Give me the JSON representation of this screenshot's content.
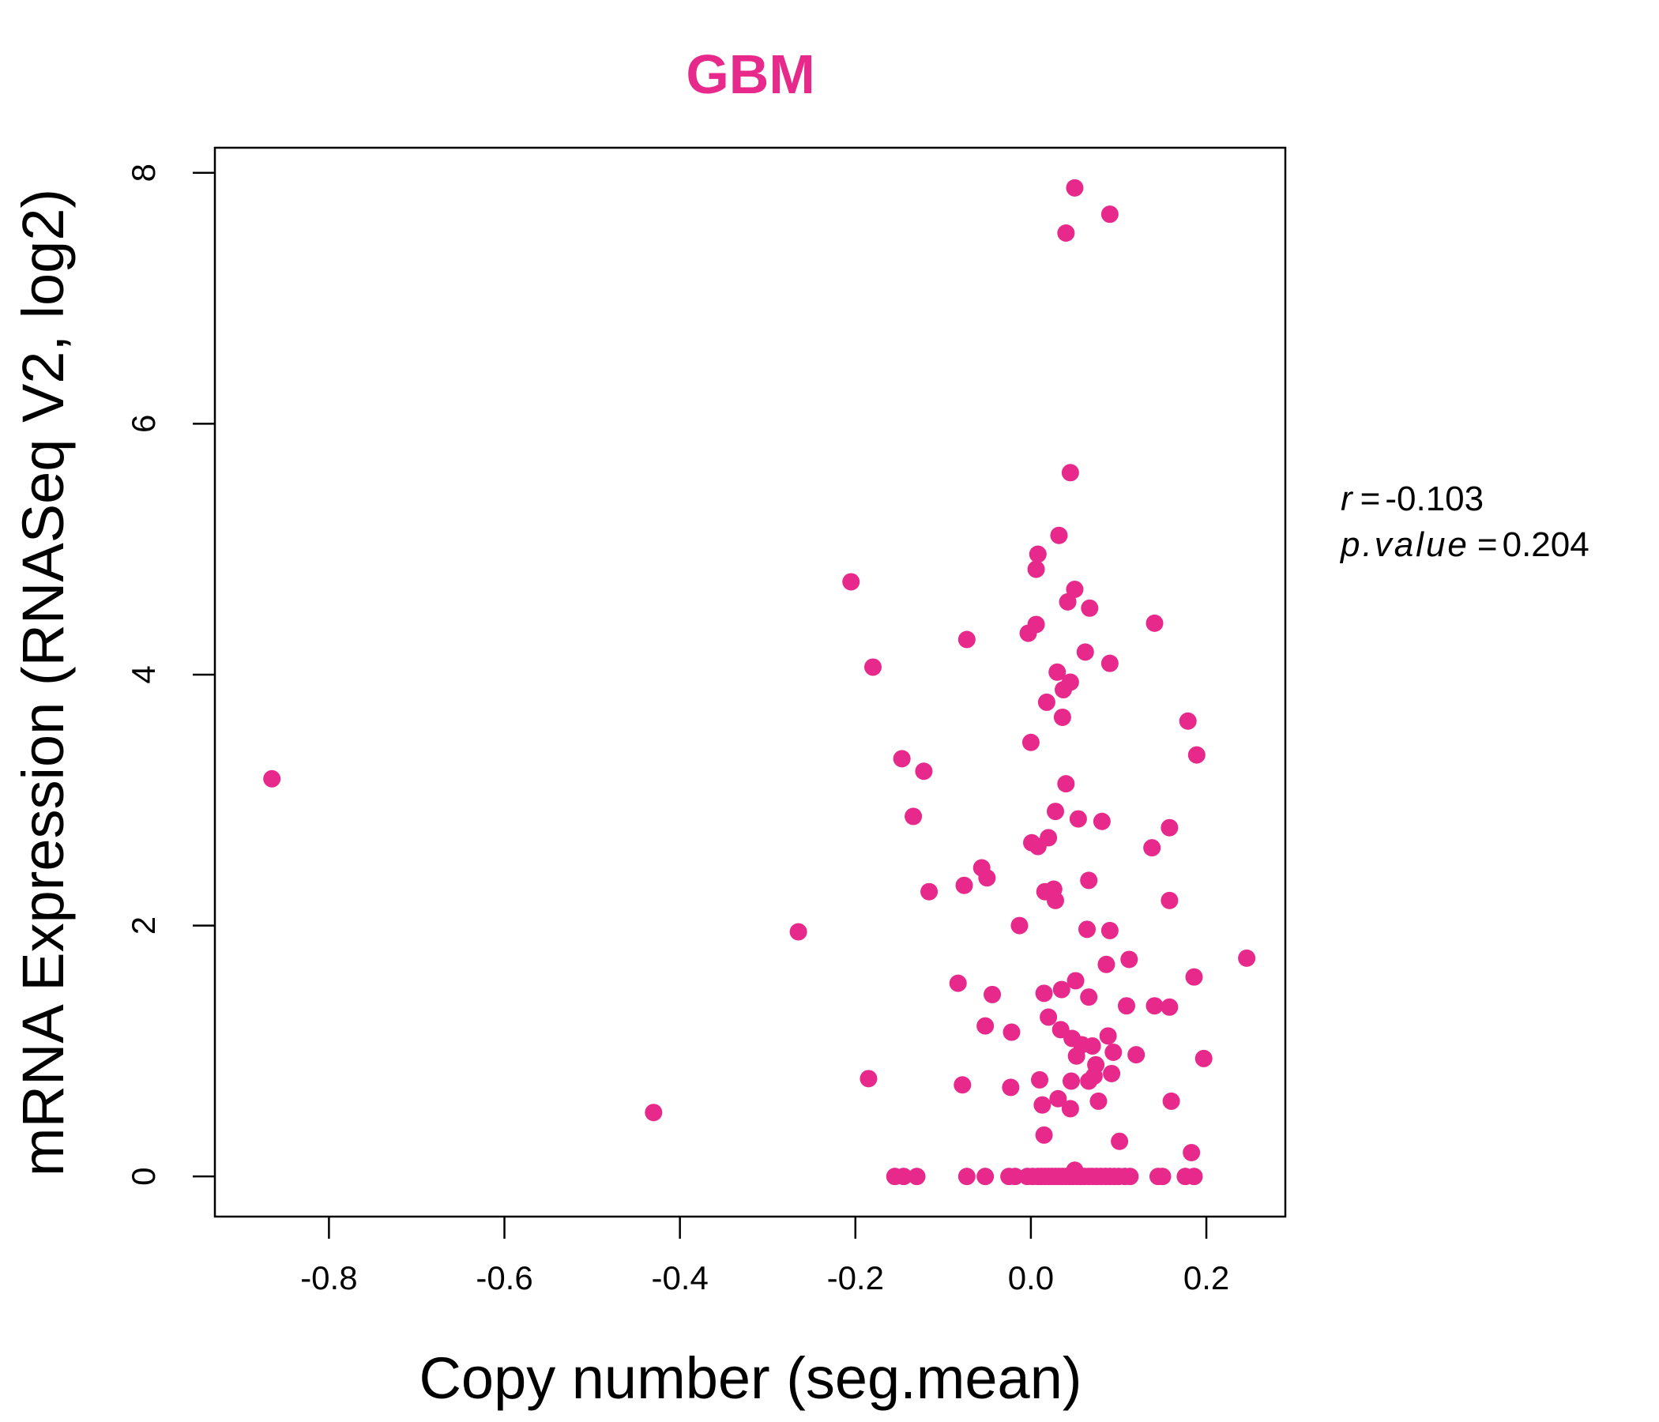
{
  "chart_data": {
    "type": "scatter",
    "title": "GBM",
    "xlabel": "Copy number (seg.mean)",
    "ylabel": "mRNA Expression (RNASeq V2, log2)",
    "xlim": [
      -0.93,
      0.29
    ],
    "ylim": [
      -0.32,
      8.2
    ],
    "xticks": [
      -0.8,
      -0.6,
      -0.4,
      -0.2,
      0.0,
      0.2
    ],
    "xtick_labels": [
      "-0.8",
      "-0.6",
      "-0.4",
      "-0.2",
      "0.0",
      "0.2"
    ],
    "yticks": [
      0,
      2,
      4,
      6,
      8
    ],
    "ytick_labels": [
      "0",
      "2",
      "4",
      "6",
      "8"
    ],
    "grid": false,
    "legend": "none",
    "color": "#E8298C",
    "stats": {
      "r_label": "r",
      "r_value": "-0.103",
      "p_label": "p.value",
      "p_value": "0.204"
    },
    "points": [
      {
        "x": -0.865,
        "y": 3.17
      },
      {
        "x": -0.43,
        "y": 0.51
      },
      {
        "x": -0.265,
        "y": 1.95
      },
      {
        "x": -0.205,
        "y": 4.74
      },
      {
        "x": -0.18,
        "y": 4.06
      },
      {
        "x": -0.185,
        "y": 0.78
      },
      {
        "x": -0.147,
        "y": 3.33
      },
      {
        "x": -0.122,
        "y": 3.23
      },
      {
        "x": -0.134,
        "y": 2.87
      },
      {
        "x": -0.116,
        "y": 2.27
      },
      {
        "x": -0.083,
        "y": 1.54
      },
      {
        "x": -0.078,
        "y": 0.73
      },
      {
        "x": -0.073,
        "y": 4.28
      },
      {
        "x": -0.076,
        "y": 2.32
      },
      {
        "x": -0.056,
        "y": 2.46
      },
      {
        "x": -0.05,
        "y": 2.38
      },
      {
        "x": -0.044,
        "y": 1.45
      },
      {
        "x": -0.052,
        "y": 1.2
      },
      {
        "x": -0.022,
        "y": 1.15
      },
      {
        "x": -0.023,
        "y": 0.71
      },
      {
        "x": -0.013,
        "y": 2.0
      },
      {
        "x": -0.003,
        "y": 4.33
      },
      {
        "x": 0.0,
        "y": 3.46
      },
      {
        "x": 0.001,
        "y": 2.66
      },
      {
        "x": 0.006,
        "y": 4.84
      },
      {
        "x": 0.008,
        "y": 4.96
      },
      {
        "x": 0.006,
        "y": 4.4
      },
      {
        "x": 0.008,
        "y": 2.63
      },
      {
        "x": 0.01,
        "y": 0.77
      },
      {
        "x": 0.013,
        "y": 0.57
      },
      {
        "x": 0.015,
        "y": 0.33
      },
      {
        "x": 0.015,
        "y": 1.46
      },
      {
        "x": 0.016,
        "y": 2.27
      },
      {
        "x": 0.018,
        "y": 3.78
      },
      {
        "x": 0.02,
        "y": 2.7
      },
      {
        "x": 0.02,
        "y": 1.27
      },
      {
        "x": 0.026,
        "y": 2.29
      },
      {
        "x": 0.028,
        "y": 2.2
      },
      {
        "x": 0.028,
        "y": 2.91
      },
      {
        "x": 0.03,
        "y": 4.02
      },
      {
        "x": 0.031,
        "y": 0.62
      },
      {
        "x": 0.032,
        "y": 5.11
      },
      {
        "x": 0.034,
        "y": 1.17
      },
      {
        "x": 0.035,
        "y": 1.49
      },
      {
        "x": 0.036,
        "y": 3.66
      },
      {
        "x": 0.037,
        "y": 3.88
      },
      {
        "x": 0.04,
        "y": 3.13
      },
      {
        "x": 0.042,
        "y": 4.58
      },
      {
        "x": 0.04,
        "y": 7.52
      },
      {
        "x": 0.045,
        "y": 5.61
      },
      {
        "x": 0.045,
        "y": 3.94
      },
      {
        "x": 0.045,
        "y": 0.54
      },
      {
        "x": 0.046,
        "y": 0.76
      },
      {
        "x": 0.047,
        "y": 1.1
      },
      {
        "x": 0.05,
        "y": 4.68
      },
      {
        "x": 0.05,
        "y": 7.88
      },
      {
        "x": 0.051,
        "y": 1.56
      },
      {
        "x": 0.052,
        "y": 0.96
      },
      {
        "x": 0.054,
        "y": 2.85
      },
      {
        "x": 0.058,
        "y": 1.05
      },
      {
        "x": 0.062,
        "y": 4.18
      },
      {
        "x": 0.064,
        "y": 1.97
      },
      {
        "x": 0.066,
        "y": 1.43
      },
      {
        "x": 0.066,
        "y": 2.36
      },
      {
        "x": 0.066,
        "y": 0.76
      },
      {
        "x": 0.067,
        "y": 4.53
      },
      {
        "x": 0.07,
        "y": 1.04
      },
      {
        "x": 0.072,
        "y": 0.8
      },
      {
        "x": 0.074,
        "y": 0.89
      },
      {
        "x": 0.077,
        "y": 0.6
      },
      {
        "x": 0.081,
        "y": 2.83
      },
      {
        "x": 0.086,
        "y": 1.69
      },
      {
        "x": 0.088,
        "y": 1.12
      },
      {
        "x": 0.09,
        "y": 1.96
      },
      {
        "x": 0.09,
        "y": 4.09
      },
      {
        "x": 0.09,
        "y": 7.67
      },
      {
        "x": 0.092,
        "y": 0.82
      },
      {
        "x": 0.094,
        "y": 0.99
      },
      {
        "x": 0.101,
        "y": 0.28
      },
      {
        "x": 0.109,
        "y": 1.36
      },
      {
        "x": 0.112,
        "y": 1.73
      },
      {
        "x": 0.12,
        "y": 0.97
      },
      {
        "x": 0.138,
        "y": 2.62
      },
      {
        "x": 0.141,
        "y": 4.41
      },
      {
        "x": 0.141,
        "y": 1.36
      },
      {
        "x": 0.158,
        "y": 2.78
      },
      {
        "x": 0.158,
        "y": 2.2
      },
      {
        "x": 0.158,
        "y": 1.35
      },
      {
        "x": 0.16,
        "y": 0.6
      },
      {
        "x": 0.179,
        "y": 3.63
      },
      {
        "x": 0.183,
        "y": 0.19
      },
      {
        "x": 0.186,
        "y": 1.59
      },
      {
        "x": 0.189,
        "y": 3.36
      },
      {
        "x": 0.197,
        "y": 0.94
      },
      {
        "x": 0.246,
        "y": 1.74
      },
      {
        "x": 0.05,
        "y": 0.05
      },
      {
        "x": -0.155,
        "y": 0.0
      },
      {
        "x": -0.145,
        "y": 0.0
      },
      {
        "x": -0.13,
        "y": 0.0
      },
      {
        "x": -0.073,
        "y": 0.0
      },
      {
        "x": -0.052,
        "y": 0.0
      },
      {
        "x": -0.025,
        "y": 0.0
      },
      {
        "x": -0.018,
        "y": 0.0
      },
      {
        "x": -0.004,
        "y": 0.0
      },
      {
        "x": 0.002,
        "y": 0.0
      },
      {
        "x": 0.008,
        "y": 0.0
      },
      {
        "x": 0.012,
        "y": 0.0
      },
      {
        "x": 0.016,
        "y": 0.0
      },
      {
        "x": 0.02,
        "y": 0.0
      },
      {
        "x": 0.024,
        "y": 0.0
      },
      {
        "x": 0.028,
        "y": 0.0
      },
      {
        "x": 0.032,
        "y": 0.0
      },
      {
        "x": 0.036,
        "y": 0.0
      },
      {
        "x": 0.04,
        "y": 0.0
      },
      {
        "x": 0.044,
        "y": 0.0
      },
      {
        "x": 0.048,
        "y": 0.0
      },
      {
        "x": 0.053,
        "y": 0.0
      },
      {
        "x": 0.057,
        "y": 0.0
      },
      {
        "x": 0.061,
        "y": 0.0
      },
      {
        "x": 0.066,
        "y": 0.0
      },
      {
        "x": 0.07,
        "y": 0.0
      },
      {
        "x": 0.075,
        "y": 0.0
      },
      {
        "x": 0.08,
        "y": 0.0
      },
      {
        "x": 0.085,
        "y": 0.0
      },
      {
        "x": 0.09,
        "y": 0.0
      },
      {
        "x": 0.095,
        "y": 0.0
      },
      {
        "x": 0.1,
        "y": 0.0
      },
      {
        "x": 0.107,
        "y": 0.0
      },
      {
        "x": 0.113,
        "y": 0.0
      },
      {
        "x": 0.145,
        "y": 0.0
      },
      {
        "x": 0.15,
        "y": 0.0
      },
      {
        "x": 0.176,
        "y": 0.0
      },
      {
        "x": 0.186,
        "y": 0.0
      }
    ]
  }
}
